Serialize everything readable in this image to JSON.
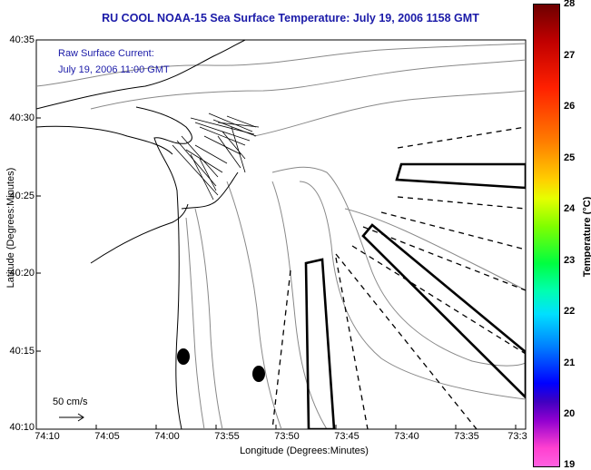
{
  "title": "RU COOL  NOAA-15  Sea Surface Temperature:  July 19, 2006 1158 GMT",
  "current": {
    "line1": "Raw Surface Current:",
    "line2": "July 19, 2006 11:00 GMT"
  },
  "scale_label": "50 cm/s",
  "axes": {
    "xlabel": "Longitude (Degrees:Minutes)",
    "ylabel": "Latitude (Degrees:Minutes)",
    "xticks": [
      "74:10",
      "74:05",
      "74:00",
      "73:55",
      "73:50",
      "73:45",
      "73:40",
      "73:35",
      "73:3"
    ],
    "yticks": [
      "40:35",
      "40:30",
      "40:25",
      "40:20",
      "40:15",
      "40:10"
    ]
  },
  "colorbar": {
    "title": "Temperature (°C)",
    "ticks": [
      "28",
      "27",
      "26",
      "25",
      "24",
      "23",
      "22",
      "21",
      "20",
      "19"
    ]
  }
}
